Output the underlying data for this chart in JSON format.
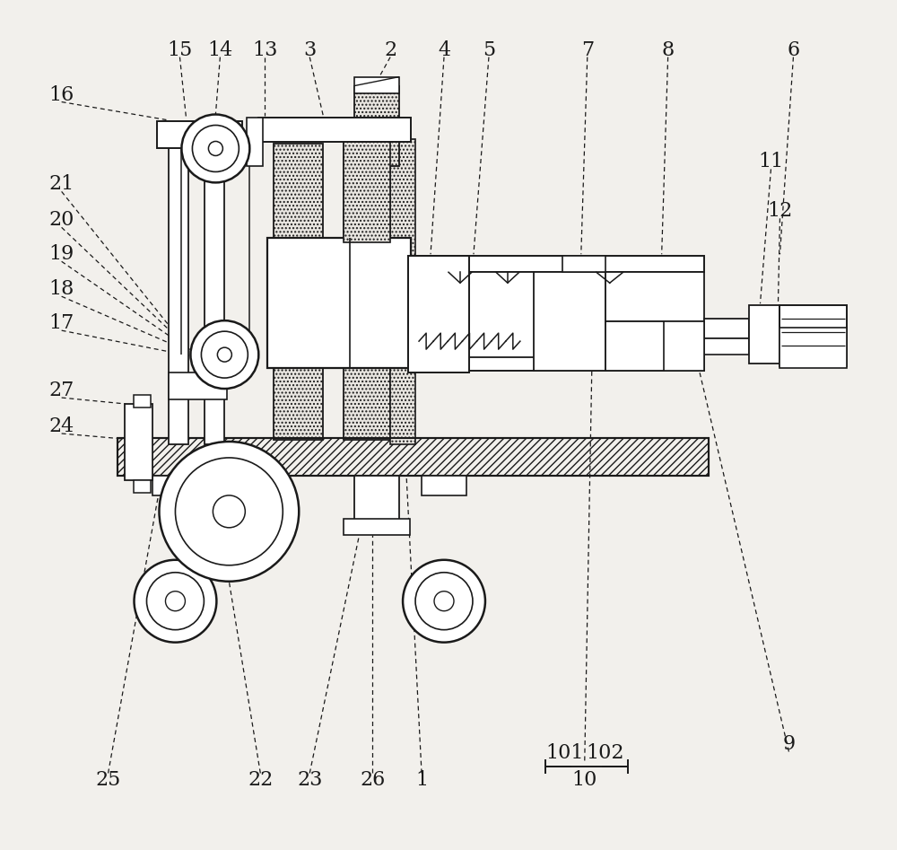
{
  "bg": "#f2f0ec",
  "lc": "#1a1a1a",
  "figsize": [
    10.0,
    9.47
  ],
  "dpi": 100
}
